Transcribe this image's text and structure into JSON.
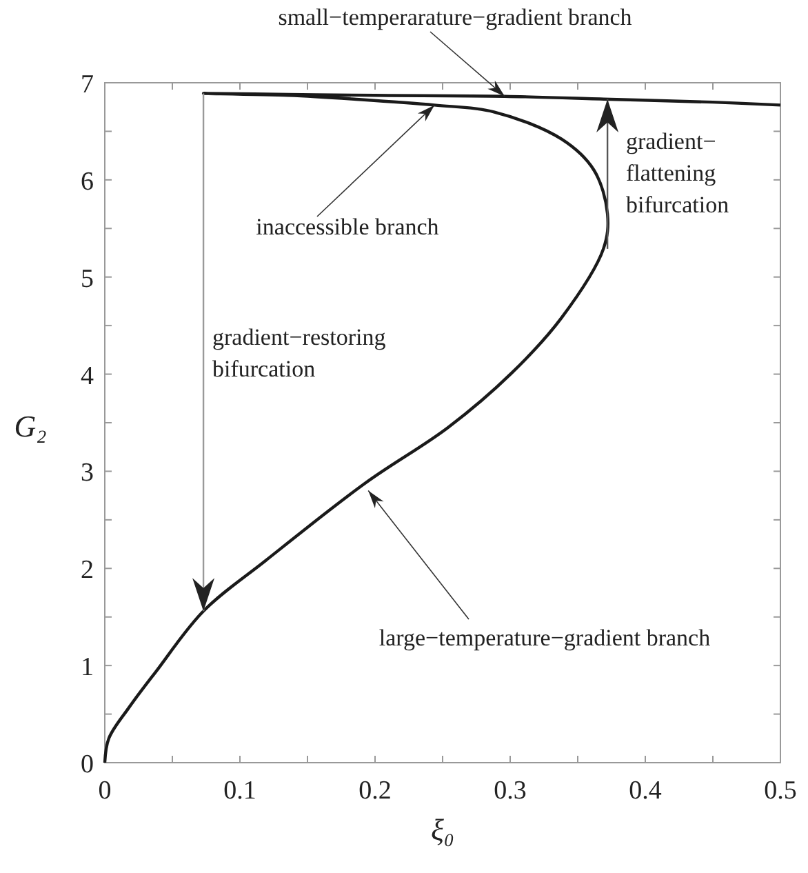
{
  "chart_data": {
    "type": "line",
    "xlabel": "ξ₀",
    "ylabel": "G₂",
    "xlim": [
      0,
      0.5
    ],
    "ylim": [
      0,
      7
    ],
    "xticks": [
      0,
      {
        "value": 0.05,
        "label": null
      },
      0.1,
      {
        "value": 0.15,
        "label": null
      },
      0.2,
      {
        "value": 0.25,
        "label": null
      },
      0.3,
      {
        "value": 0.35,
        "label": null
      },
      0.4,
      {
        "value": 0.45,
        "label": null
      },
      0.5
    ],
    "yticks": [
      0,
      {
        "value": 0.5,
        "label": null
      },
      1,
      {
        "value": 1.5,
        "label": null
      },
      2,
      {
        "value": 2.5,
        "label": null
      },
      3,
      {
        "value": 3.5,
        "label": null
      },
      4,
      {
        "value": 4.5,
        "label": null
      },
      5,
      {
        "value": 5.5,
        "label": null
      },
      6,
      {
        "value": 6.5,
        "label": null
      },
      7
    ],
    "grid": false,
    "marker": "none",
    "line_style": "solid",
    "series": [
      {
        "color": "#1a1a1a",
        "x": [
          0,
          0.003,
          0.0175,
          0.038,
          0.073,
          0.119,
          0.193,
          0.254,
          0.301,
          0.338,
          0.369,
          0.372,
          0.362,
          0.338,
          0.288,
          0.244,
          0.186,
          0.136,
          0.073,
          0.136,
          0.2,
          0.296,
          0.374,
          0.45,
          0.5
        ],
        "values": [
          0,
          0.25,
          0.56,
          0.94,
          1.56,
          2.08,
          2.88,
          3.45,
          4.01,
          4.58,
          5.29,
          5.65,
          6.1,
          6.42,
          6.7,
          6.77,
          6.83,
          6.87,
          6.89,
          6.88,
          6.87,
          6.86,
          6.83,
          6.8,
          6.77
        ]
      }
    ],
    "annotations": [
      {
        "text": "small−temperarature−gradient branch",
        "x": 0.296,
        "y": 6.86
      },
      {
        "text": "inaccessible branch",
        "x": 0.244,
        "y": 6.77
      },
      {
        "text": "large−temperature−gradient branch",
        "x": 0.195,
        "y": 2.8
      },
      "gradient−restoring\nbifurcation",
      {
        "text": "gradient−\nflattening\nbifurcation",
        "x": 0.372,
        "y": 6.83
      }
    ]
  }
}
